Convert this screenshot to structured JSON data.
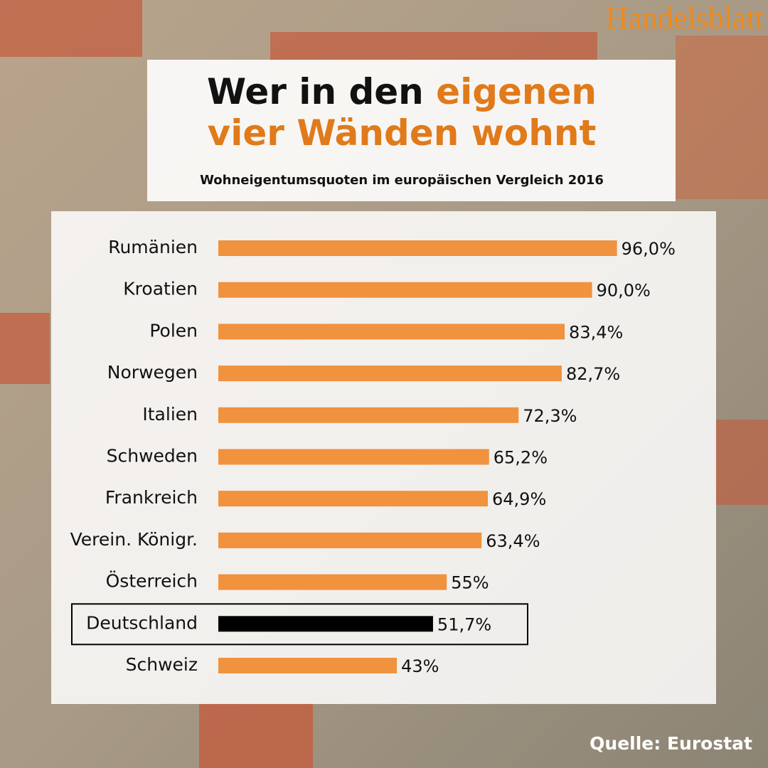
{
  "chart_data": {
    "type": "bar",
    "orientation": "horizontal",
    "brand": "Handelsblatt",
    "title_parts": [
      "Wer in den",
      "eigenen",
      "vier Wänden wohnt"
    ],
    "title_colors": [
      "#111111",
      "#e07a1a",
      "#e07a1a"
    ],
    "subtitle": "Wohneigentumsquoten im europäischen Vergleich 2016",
    "source": "Quelle: Eurostat",
    "categories": [
      "Rumänien",
      "Kroatien",
      "Polen",
      "Norwegen",
      "Italien",
      "Schweden",
      "Frankreich",
      "Verein. Königr.",
      "Österreich",
      "Deutschland",
      "Schweiz"
    ],
    "values": [
      96.0,
      90.0,
      83.4,
      82.7,
      72.3,
      65.2,
      64.9,
      63.4,
      55,
      51.7,
      43
    ],
    "value_labels": [
      "96,0%",
      "90,0%",
      "83,4%",
      "82,7%",
      "72,3%",
      "65,2%",
      "64,9%",
      "63,4%",
      "55%",
      "51,7%",
      "43%"
    ],
    "colors": [
      "#f0923e",
      "#f0923e",
      "#f0923e",
      "#f0923e",
      "#f0923e",
      "#f0923e",
      "#f0923e",
      "#f0923e",
      "#f0923e",
      "#000000",
      "#f0923e"
    ],
    "xlim": [
      0,
      100
    ]
  }
}
